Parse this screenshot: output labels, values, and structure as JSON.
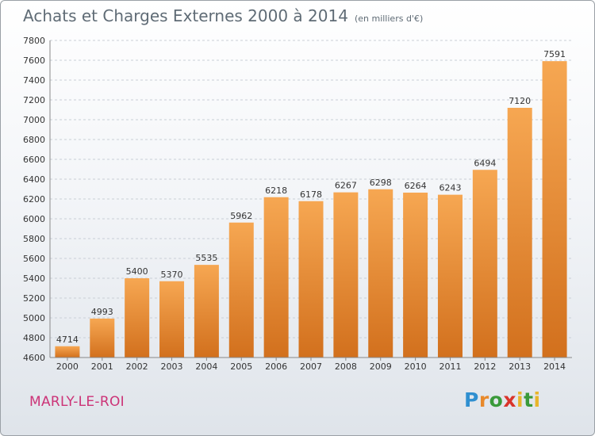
{
  "header": {
    "title": "Achats et Charges Externes 2000 à 2014",
    "subtitle": "(en milliers d'€)"
  },
  "footer": {
    "location": "MARLY-LE-ROI",
    "logo": "Proxiti"
  },
  "colors": {
    "bar_top": "#f6a752",
    "bar_bottom": "#d2701d",
    "grid": "#c9cfd6",
    "location": "#cc3377"
  },
  "chart_data": {
    "type": "bar",
    "title": "Achats et Charges Externes 2000 à 2014",
    "subtitle": "(en milliers d'€)",
    "xlabel": "",
    "ylabel": "",
    "categories": [
      "2000",
      "2001",
      "2002",
      "2003",
      "2004",
      "2005",
      "2006",
      "2007",
      "2008",
      "2009",
      "2010",
      "2011",
      "2012",
      "2013",
      "2014"
    ],
    "values": [
      4714,
      4993,
      5400,
      5370,
      5535,
      5962,
      6218,
      6178,
      6267,
      6298,
      6264,
      6243,
      6494,
      7120,
      7591
    ],
    "ylim": [
      4600,
      7800
    ],
    "yticks": [
      4600,
      4800,
      5000,
      5200,
      5400,
      5600,
      5800,
      6000,
      6200,
      6400,
      6600,
      6800,
      7000,
      7200,
      7400,
      7600,
      7800
    ],
    "grid": true
  }
}
